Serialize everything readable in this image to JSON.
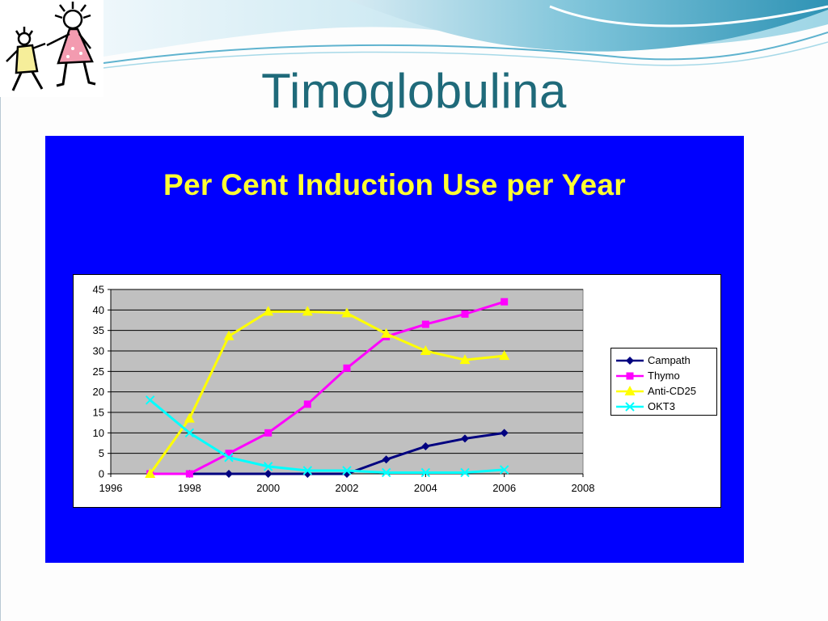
{
  "slide": {
    "title": "Timoglobulina"
  },
  "colors": {
    "title": "#1f6a7a",
    "panel": "#0000ff",
    "heading": "#ffff33",
    "plot_area": "#c0c0c0"
  },
  "logo": {
    "icon": "children-playing-icon"
  },
  "chart_data": {
    "type": "line",
    "title": "Per Cent Induction Use per Year",
    "xlabel": "",
    "ylabel": "",
    "xlim": [
      1996,
      2008
    ],
    "ylim": [
      0,
      45
    ],
    "x_ticks": [
      1996,
      1998,
      2000,
      2002,
      2004,
      2006,
      2008
    ],
    "y_ticks": [
      0,
      5,
      10,
      15,
      20,
      25,
      30,
      35,
      40,
      45
    ],
    "grid": true,
    "legend_position": "right",
    "x": [
      1997,
      1998,
      1999,
      2000,
      2001,
      2002,
      2003,
      2004,
      2005,
      2006
    ],
    "series": [
      {
        "name": "Campath",
        "color": "#000080",
        "marker": "diamond",
        "values": [
          0,
          0,
          0,
          0,
          0,
          0,
          3.5,
          6.7,
          8.6,
          10
        ]
      },
      {
        "name": "Thymo",
        "color": "#ff00ff",
        "marker": "square",
        "values": [
          0,
          0,
          5,
          10,
          17,
          25.8,
          33.5,
          36.5,
          39,
          42
        ]
      },
      {
        "name": "Anti-CD25",
        "color": "#ffff00",
        "marker": "triangle",
        "values": [
          0,
          13.5,
          33.6,
          39.6,
          39.6,
          39.2,
          34.2,
          30,
          27.8,
          28.8
        ]
      },
      {
        "name": "OKT3",
        "color": "#00ffff",
        "marker": "x",
        "values": [
          18,
          10,
          4,
          1.8,
          0.8,
          0.8,
          0.3,
          0.3,
          0.3,
          1
        ]
      }
    ]
  }
}
